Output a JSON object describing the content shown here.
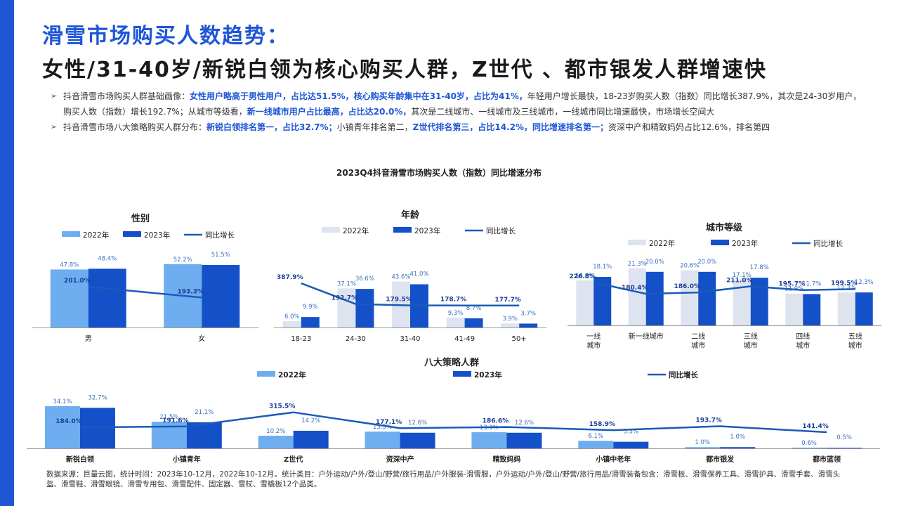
{
  "header": {
    "title1": "滑雪市场购买人数趋势：",
    "title2": "女性/31-40岁/新锐白领为核心购买人群，Z世代 、都市银发人群增速快"
  },
  "bullets": [
    {
      "parts": [
        {
          "t": "抖音滑雪市场购买人群基础画像：",
          "hl": false
        },
        {
          "t": "女性用户略高于男性用户，占比达51.5%，核心购买年龄集中在31-40岁，占比为41%，",
          "hl": true
        },
        {
          "t": "年轻用户增长最快，18-23岁购买人数（指数）同比增长387.9%，其次是24-30岁用户，购买人数（指数）增长192.7%；从城市等级看，",
          "hl": false
        },
        {
          "t": "新一线城市用户占比最高，占比达20.0%，",
          "hl": true
        },
        {
          "t": "其次是二线城市、一线城市及三线城市，一线城市同比增速最快，市场增长空间大",
          "hl": false
        }
      ]
    },
    {
      "parts": [
        {
          "t": "抖音滑雪市场八大策略购买人群分布：",
          "hl": false
        },
        {
          "t": "新锐白领排名第一，占比32.7%；",
          "hl": true
        },
        {
          "t": "小镇青年排名第二，",
          "hl": false
        },
        {
          "t": "Z世代排名第三，占比14.2%，同比增速排名第一；",
          "hl": true
        },
        {
          "t": "资深中产和精致妈妈占比12.6%，排名第四",
          "hl": false
        }
      ]
    }
  ],
  "source": "数据来源：巨量云图，统计时间：2023年10-12月，2022年10-12月。统计类目：户外运动/户外/登山/野营/旅行用品/户外服装-滑雪服，户外运动/户外/登山/野营/旅行用品/滑雪装备包含：滑雪板、滑雪保养工具、滑雪护具、滑雪手套、滑雪头盔、滑雪鞋、滑雪眼镜、滑雪专用包、滑雪配件、固定器、雪杖、雪橇板12个品类。",
  "colors": {
    "bar2022": "#6eaef0",
    "bar2022_light": "#dde4f0",
    "bar2023": "#1450c8",
    "line": "#1a5bb8",
    "accent": "#1e56d6"
  },
  "chart_data": [
    {
      "type": "bar",
      "overall_title": "2023Q4抖音滑雪市场购买人数（指数）同比增速分布",
      "title": "性别",
      "legend": [
        "2022年",
        "2023年",
        "同比增长"
      ],
      "categories": [
        "男",
        "女"
      ],
      "series": [
        {
          "name": "2022年",
          "values": [
            "47.8%",
            "52.2%"
          ]
        },
        {
          "name": "2023年",
          "values": [
            "48.4%",
            "51.5%"
          ]
        },
        {
          "name": "同比增长",
          "values": [
            "201.0%",
            "193.3%"
          ]
        }
      ]
    },
    {
      "type": "bar",
      "title": "年龄",
      "legend": [
        "2022年",
        "2023年",
        "同比增长"
      ],
      "categories": [
        "18-23",
        "24-30",
        "31-40",
        "41-49",
        "50+"
      ],
      "series": [
        {
          "name": "2022年",
          "values": [
            "6.0%",
            "37.1%",
            "43.6%",
            "9.3%",
            "3.9%"
          ]
        },
        {
          "name": "2023年",
          "values": [
            "9.9%",
            "36.6%",
            "41.0%",
            "8.7%",
            "3.7%"
          ]
        },
        {
          "name": "同比增长",
          "values": [
            "387.9%",
            "192.7%",
            "179.5%",
            "178.7%",
            "177.7%"
          ]
        }
      ]
    },
    {
      "type": "bar",
      "title": "城市等级",
      "legend": [
        "2022年",
        "2023年",
        "同比增长"
      ],
      "categories": [
        "一线城市",
        "新一线城市",
        "二线城市",
        "三线城市",
        "四线城市",
        "五线城市"
      ],
      "category_lines": [
        [
          "一线",
          "城市"
        ],
        [
          "新一线城市"
        ],
        [
          "二线",
          "城市"
        ],
        [
          "三线",
          "城市"
        ],
        [
          "四线",
          "城市"
        ],
        [
          "五线",
          "城市"
        ]
      ],
      "series": [
        {
          "name": "2022年",
          "values": [
            "16.8%",
            "21.3%",
            "20.6%",
            "17.1%",
            "11.9%",
            "12.3%"
          ]
        },
        {
          "name": "2023年",
          "values": [
            "18.1%",
            "20.0%",
            "20.0%",
            "17.8%",
            "11.7%",
            "12.3%"
          ]
        },
        {
          "name": "同比增长",
          "values": [
            "226.8%",
            "180.4%",
            "186.0%",
            "211.0%",
            "195.7%",
            "199.5%"
          ]
        }
      ]
    },
    {
      "type": "bar",
      "title": "八大策略人群",
      "legend": [
        "2022年",
        "2023年",
        "同比增长"
      ],
      "categories": [
        "新锐白领",
        "小镇青年",
        "Z世代",
        "资深中产",
        "精致妈妈",
        "小镇中老年",
        "都市银发",
        "都市蓝领"
      ],
      "series": [
        {
          "name": "2022年",
          "values": [
            "34.1%",
            "21.5%",
            "10.2%",
            "13.5%",
            "13.1%",
            "6.1%",
            "1.0%",
            "0.6%"
          ]
        },
        {
          "name": "2023年",
          "values": [
            "32.7%",
            "21.1%",
            "14.2%",
            "12.6%",
            "12.6%",
            "5.3%",
            "1.0%",
            "0.5%"
          ]
        },
        {
          "name": "同比增长",
          "values": [
            "184.0%",
            "191.6%",
            "315.5%",
            "177.1%",
            "186.6%",
            "158.9%",
            "193.7%",
            "141.4%"
          ]
        }
      ]
    }
  ]
}
